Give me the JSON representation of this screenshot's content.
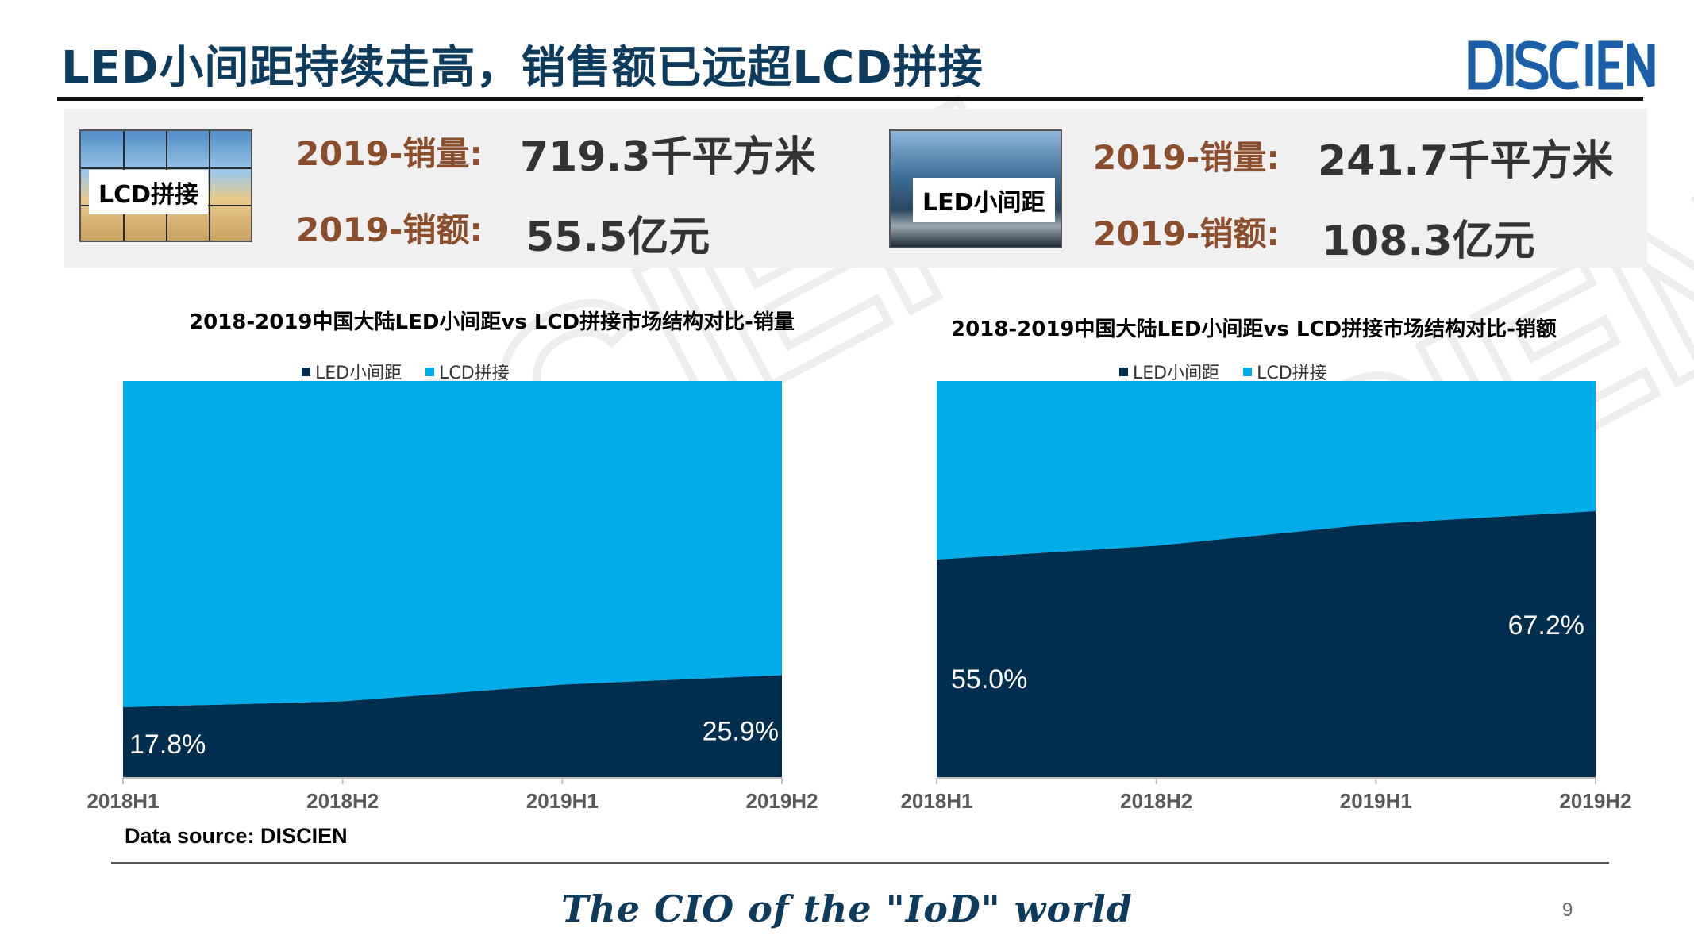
{
  "header": {
    "title": "LED小间距持续走高，销售额已远超LCD拼接",
    "logo_text": "DISCIEN"
  },
  "stats": {
    "lcd": {
      "thumb_label": "LCD拼接",
      "sales_volume_label": "2019-销量:",
      "sales_volume_value": "719.3千平方米",
      "sales_amount_label": "2019-销额:",
      "sales_amount_value": "55.5亿元"
    },
    "led": {
      "thumb_label": "LED小间距",
      "sales_volume_label": "2019-销量:",
      "sales_volume_value": "241.7千平方米",
      "sales_amount_label": "2019-销额:",
      "sales_amount_value": "108.3亿元"
    }
  },
  "colors": {
    "led_series": "#002e4e",
    "lcd_series": "#00adea",
    "accent_brown": "#8a4e2c",
    "brand_blue": "#0d3b5e"
  },
  "chart_data": [
    {
      "type": "area",
      "stacked": "percent",
      "title": "2018-2019中国大陆LED小间距vs LCD拼接市场结构对比-销量",
      "categories": [
        "2018H1",
        "2018H2",
        "2019H1",
        "2019H2"
      ],
      "series": [
        {
          "name": "LED小间距",
          "values": [
            17.8,
            19.3,
            23.5,
            25.9
          ]
        },
        {
          "name": "LCD拼接",
          "values": [
            82.2,
            80.7,
            76.5,
            74.1
          ]
        }
      ],
      "data_labels": [
        {
          "series": "LED小间距",
          "category": "2018H1",
          "text": "17.8%"
        },
        {
          "series": "LED小间距",
          "category": "2019H2",
          "text": "25.9%"
        }
      ],
      "ylim": [
        0,
        100
      ],
      "legend_position": "top"
    },
    {
      "type": "area",
      "stacked": "percent",
      "title": "2018-2019中国大陆LED小间距vs LCD拼接市场结构对比-销额",
      "categories": [
        "2018H1",
        "2018H2",
        "2019H1",
        "2019H2"
      ],
      "series": [
        {
          "name": "LED小间距",
          "values": [
            55.0,
            58.5,
            64.0,
            67.2
          ]
        },
        {
          "name": "LCD拼接",
          "values": [
            45.0,
            41.5,
            36.0,
            32.8
          ]
        }
      ],
      "data_labels": [
        {
          "series": "LED小间距",
          "category": "2018H1",
          "text": "55.0%"
        },
        {
          "series": "LED小间距",
          "category": "2019H2",
          "text": "67.2%"
        }
      ],
      "ylim": [
        0,
        100
      ],
      "legend_position": "top"
    }
  ],
  "footer": {
    "source": "Data source: DISCIEN",
    "tagline": "The CIO of the \"IoD\" world",
    "page_number": "9"
  }
}
